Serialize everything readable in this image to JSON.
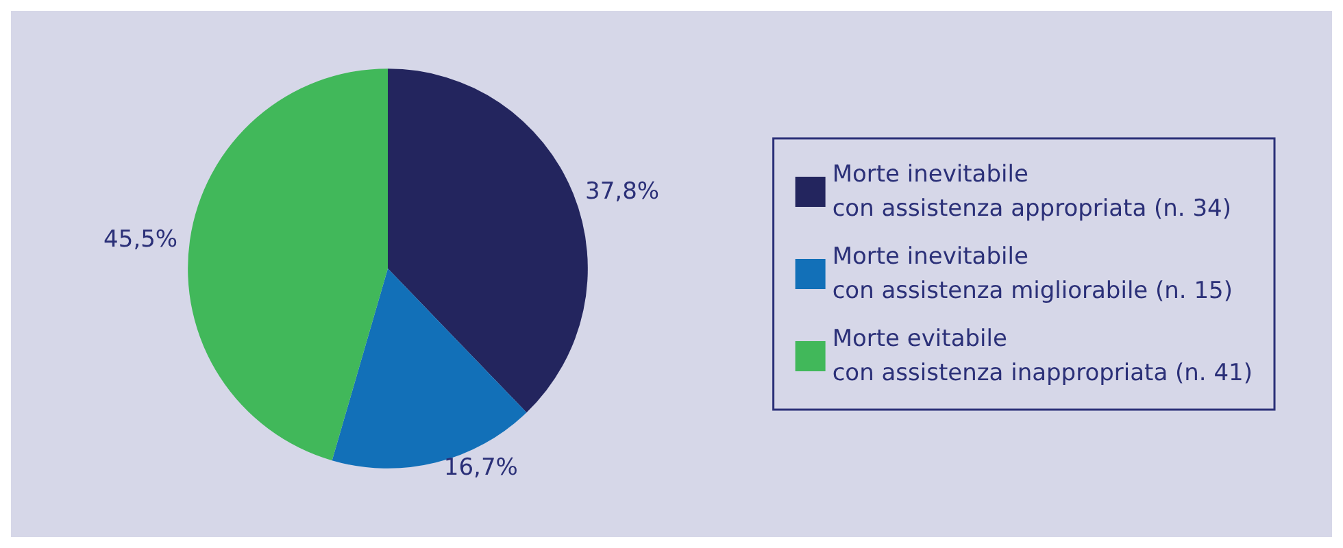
{
  "chart_data": {
    "type": "pie",
    "categories": [
      "Morte inevitabile\ncon assistenza appropriata (n. 34)",
      "Morte inevitabile\ncon assistenza migliorabile (n. 15)",
      "Morte evitabile\ncon assistenza inappropriata (n. 41)"
    ],
    "values": [
      37.8,
      16.7,
      45.5
    ],
    "value_labels": [
      "37,8%",
      "16,7%",
      "45,5%"
    ],
    "colors": [
      "#23255e",
      "#1270b8",
      "#41b85a"
    ],
    "legend": "right"
  }
}
